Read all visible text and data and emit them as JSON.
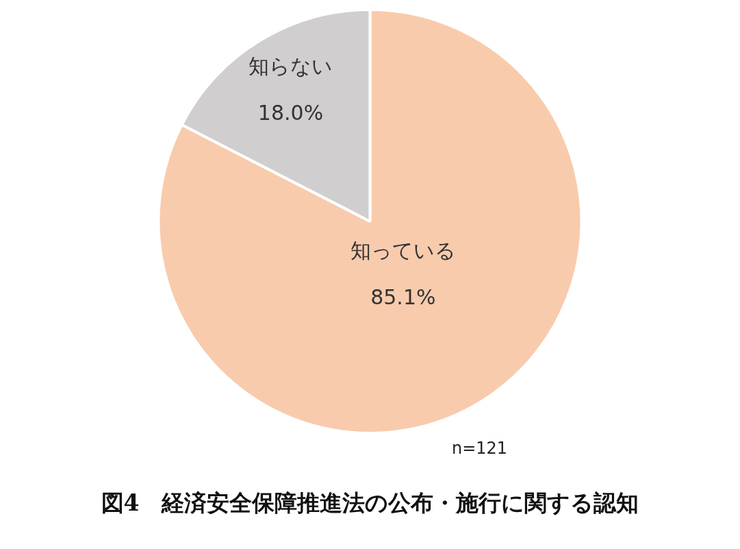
{
  "chart_data": {
    "type": "pie",
    "title": "図4　経済安全保障推進法の公布・施行に関する認知",
    "categories": [
      "知っている",
      "知らない"
    ],
    "values": [
      85.1,
      18.0
    ],
    "value_labels": [
      "85.1%",
      "18.0%"
    ],
    "colors": [
      "#f8cbad",
      "#d0cece"
    ],
    "annotations": [
      "n=121"
    ],
    "legend": false
  }
}
